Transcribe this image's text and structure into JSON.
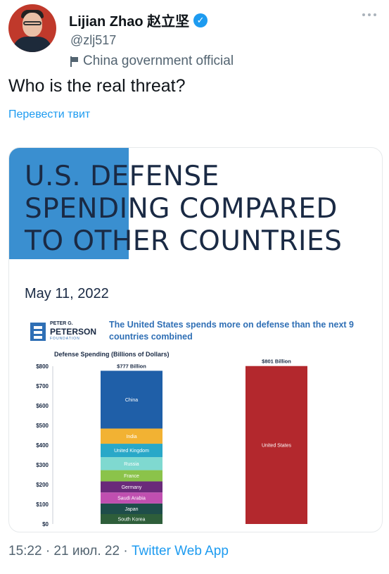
{
  "user": {
    "name": "Lijian Zhao 赵立坚",
    "handle": "@zlj517",
    "label": "China government official"
  },
  "tweet": {
    "text": "Who is the real threat?",
    "translate": "Перевести твит"
  },
  "image": {
    "headline": [
      "U.S. DEFENSE",
      "SPENDING COMPARED",
      "TO OTHER COUNTRIES"
    ],
    "date": "May 11, 2022",
    "logo": {
      "line1": "PETER G.",
      "line2": "PETERSON",
      "line3": "FOUNDATION"
    },
    "caption": "The United States spends more on defense than the next 9 countries combined",
    "y_title": "Defense Spending (Billions of Dollars)"
  },
  "chart_data": {
    "type": "bar",
    "ylabel": "Defense Spending (Billions of Dollars)",
    "ylim": [
      0,
      800
    ],
    "yticks": [
      "$0",
      "$100",
      "$200",
      "$300",
      "$400",
      "$500",
      "$600",
      "$700",
      "$800"
    ],
    "bars": [
      {
        "top_label": "$777 Billion",
        "stacked": true,
        "segments": [
          {
            "name": "South Korea",
            "value": 50,
            "color": "#2e5e3a"
          },
          {
            "name": "Japan",
            "value": 54,
            "color": "#1e4d4a"
          },
          {
            "name": "Saudi Arabia",
            "value": 56,
            "color": "#c04fb0"
          },
          {
            "name": "Germany",
            "value": 56,
            "color": "#6a2a7a"
          },
          {
            "name": "France",
            "value": 57,
            "color": "#8bc34a"
          },
          {
            "name": "Russia",
            "value": 66,
            "color": "#7fd9d0"
          },
          {
            "name": "United Kingdom",
            "value": 68,
            "color": "#29a8c8"
          },
          {
            "name": "India",
            "value": 77,
            "color": "#f2b233"
          },
          {
            "name": "China",
            "value": 293,
            "color": "#1f5fa8"
          }
        ]
      },
      {
        "top_label": "$801 Billion",
        "stacked": false,
        "segments": [
          {
            "name": "United States",
            "value": 801,
            "color": "#b3282d"
          }
        ]
      }
    ]
  },
  "footer": {
    "time": "15:22 · 21 июл. 22 · ",
    "app": "Twitter Web App"
  }
}
